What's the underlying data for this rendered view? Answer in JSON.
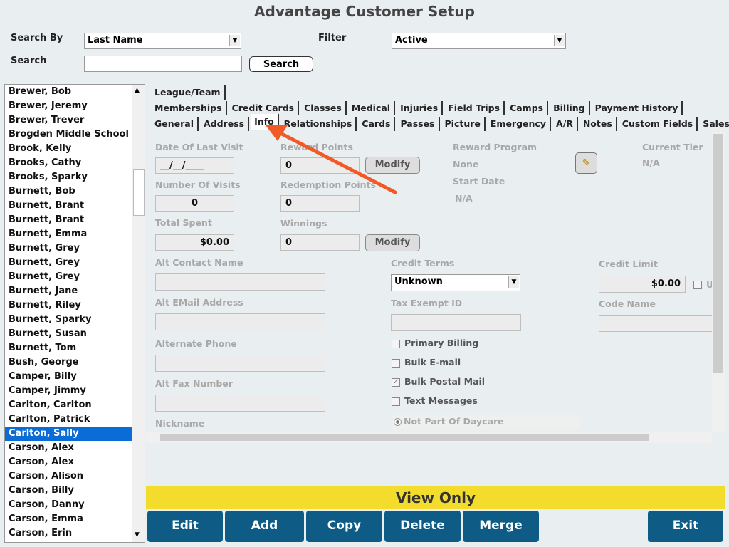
{
  "title": "Advantage Customer Setup",
  "search": {
    "search_by_label": "Search By",
    "search_by_value": "Last Name",
    "filter_label": "Filter",
    "filter_value": "Active",
    "search_label": "Search",
    "search_button": "Search"
  },
  "customer_list": {
    "items": [
      "Brewer, Bob",
      "Brewer, Jeremy",
      "Brewer, Trever",
      "Brogden Middle School",
      "Brook, Kelly",
      "Brooks, Cathy",
      "Brooks, Sparky",
      "Burnett, Bob",
      "Burnett, Brant",
      "Burnett, Brant",
      "Burnett, Emma",
      "Burnett, Grey",
      "Burnett, Grey",
      "Burnett, Grey",
      "Burnett, Jane",
      "Burnett, Riley",
      "Burnett, Sparky",
      "Burnett, Susan",
      "Burnett, Tom",
      "Bush, George",
      "Camper, Billy",
      "Camper, Jimmy",
      "Carlton, Carlton",
      "Carlton, Patrick",
      "Carlton, Sally",
      "Carson, Alex",
      "Carson, Alex",
      "Carson, Alison",
      "Carson, Billy",
      "Carson, Danny",
      "Carson, Emma",
      "Carson, Erin"
    ],
    "selected": 24
  },
  "tabs": {
    "rows": [
      [
        "League/Team"
      ],
      [
        "Memberships",
        "Credit Cards",
        "Classes",
        "Medical",
        "Injuries",
        "Field Trips",
        "Camps",
        "Billing",
        "Payment History"
      ],
      [
        "General",
        "Address",
        "Info",
        "Relationships",
        "Cards",
        "Passes",
        "Picture",
        "Emergency",
        "A/R",
        "Notes",
        "Custom Fields",
        "Sales"
      ]
    ],
    "active": {
      "row": 2,
      "index": 2
    }
  },
  "info": {
    "date_of_last_visit": {
      "label": "Date Of Last Visit",
      "value": "__/__/____"
    },
    "reward_points": {
      "label": "Reward Points",
      "value": "0",
      "button": "Modify"
    },
    "reward_program": {
      "label": "Reward Program",
      "value": "None"
    },
    "current_tier": {
      "label": "Current Tier",
      "value": "N/A"
    },
    "number_of_visits": {
      "label": "Number Of Visits",
      "value": "0"
    },
    "redemption_points": {
      "label": "Redemption Points",
      "value": "0"
    },
    "start_date": {
      "label": "Start Date",
      "value": "N/A"
    },
    "total_spent": {
      "label": "Total Spent",
      "value": "$0.00"
    },
    "winnings": {
      "label": "Winnings",
      "value": "0",
      "button": "Modify"
    },
    "alt_contact_name": {
      "label": "Alt Contact Name"
    },
    "credit_terms": {
      "label": "Credit Terms",
      "value": "Unknown"
    },
    "credit_limit": {
      "label": "Credit Limit",
      "value": "$0.00",
      "checkbox_label": "U"
    },
    "alt_email_address": {
      "label": "Alt EMail Address"
    },
    "tax_exempt_id": {
      "label": "Tax Exempt ID"
    },
    "code_name": {
      "label": "Code Name"
    },
    "alternate_phone": {
      "label": "Alternate Phone"
    },
    "alt_fax_number": {
      "label": "Alt Fax Number"
    },
    "nickname": {
      "label": "Nickname"
    },
    "checkboxes": [
      {
        "label": "Primary Billing",
        "checked": false
      },
      {
        "label": "Bulk E-mail",
        "checked": false
      },
      {
        "label": "Bulk Postal Mail",
        "checked": true
      },
      {
        "label": "Text Messages",
        "checked": false
      }
    ],
    "daycare": {
      "label": "Not Part Of Daycare",
      "selected": true
    }
  },
  "status": "View Only",
  "actions": [
    "Edit",
    "Add",
    "Copy",
    "Delete",
    "Merge",
    "Exit"
  ]
}
